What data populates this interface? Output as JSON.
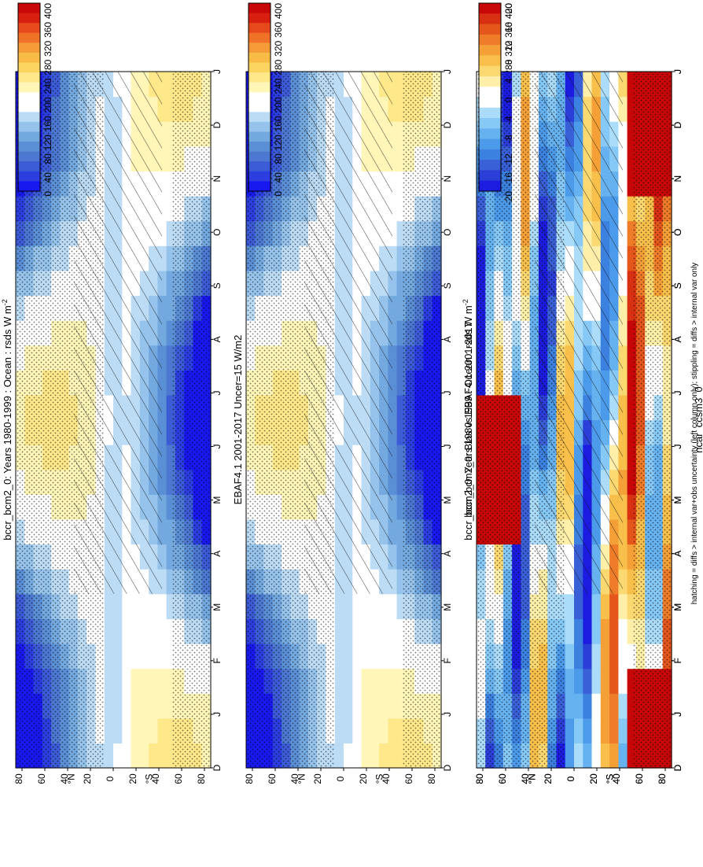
{
  "figure": {
    "footnote": "hatching = diffs > internal var+obs uncertainty (left column only); stippling = diffs > internal var only"
  },
  "colors": {
    "abs_scale": [
      "#1818f0",
      "#2c3ee0",
      "#3c5bd6",
      "#4c78d2",
      "#5b8fd5",
      "#74a9e0",
      "#96c3ec",
      "#bcdcf6",
      "#ffffff",
      "#ffffff",
      "#fff6b8",
      "#ffe88a",
      "#fbd460",
      "#f8bb45",
      "#f49a38",
      "#ef7228",
      "#e64a1c",
      "#d82010",
      "#c80808"
    ],
    "diff_scale": [
      "#1c1ce0",
      "#2c3ed8",
      "#3a60d8",
      "#3c80e0",
      "#4c9aea",
      "#66b2f0",
      "#86c8f6",
      "#abdcfa",
      "#ffffff",
      "#ffffff",
      "#ffefa8",
      "#fbd870",
      "#f8bf4a",
      "#f4a036",
      "#ee7c28",
      "#e5561c",
      "#d83012",
      "#c80808"
    ],
    "hatch": "#111111",
    "stipple": "#000000"
  },
  "chart_data": [
    {
      "type": "heatmap",
      "id": "top-left",
      "title": "bccr_bcm2_0: Years 1980-1999 : Ocean : rsds W m⁻²",
      "title_main": "bccr_bcm2_0: Years 1980-1999 : Ocean : rsds W m",
      "title_sup": "-2",
      "x_labels": [
        "D",
        "J",
        "F",
        "M",
        "A",
        "M",
        "J",
        "J",
        "A",
        "S",
        "O",
        "N",
        "D",
        "J"
      ],
      "y_labels": [
        "80",
        "60",
        "40",
        "20",
        "0",
        "20",
        "40",
        "60",
        "80"
      ],
      "y_tick_marks": [
        "N",
        "S"
      ],
      "colorbar_labels": [
        "400",
        "360",
        "320",
        "280",
        "240",
        "200",
        "160",
        "120",
        "80",
        "40",
        "0"
      ],
      "range": [
        0,
        420
      ],
      "kind": "abs",
      "hatched": true
    },
    {
      "type": "heatmap",
      "id": "top-right",
      "title": "bccr_bcm2_0: Years 1980-1999 : Ocean : rsds W m⁻²",
      "title_main": "bccr_bcm2_0: Years 1980-1999 : Ocean : rsds W m",
      "title_sup": "-2",
      "x_labels": [
        "D",
        "J",
        "F",
        "M",
        "A",
        "M",
        "J",
        "J",
        "A",
        "S",
        "O",
        "N",
        "D",
        "J"
      ],
      "y_labels": [
        "80",
        "60",
        "40",
        "20",
        "0",
        "20",
        "40",
        "60",
        "80"
      ],
      "y_tick_marks": [
        "N",
        "S"
      ],
      "colorbar_labels": [
        "400",
        "360",
        "320",
        "280",
        "240",
        "200",
        "160",
        "120",
        "80",
        "40",
        "0"
      ],
      "range": [
        0,
        420
      ],
      "kind": "abs",
      "hatched": false
    },
    {
      "type": "heatmap",
      "id": "middle-left",
      "title": "EBAF4.1 2001-2017 Uncer=15 W/m2",
      "x_labels": [
        "D",
        "J",
        "F",
        "M",
        "A",
        "M",
        "J",
        "J",
        "A",
        "S",
        "O",
        "N",
        "D",
        "J"
      ],
      "y_labels": [
        "80",
        "60",
        "40",
        "20",
        "0",
        "20",
        "40",
        "60",
        "80"
      ],
      "y_tick_marks": [
        "N",
        "S"
      ],
      "colorbar_labels": [
        "400",
        "360",
        "320",
        "280",
        "240",
        "200",
        "160",
        "120",
        "80",
        "40",
        "0"
      ],
      "range": [
        0,
        420
      ],
      "kind": "abs",
      "hatched": true
    },
    {
      "type": "heatmap",
      "id": "middle-right",
      "title": "ncar_ccsm3_0",
      "x_labels": [
        "D",
        "J",
        "F",
        "M",
        "A",
        "M",
        "J",
        "J",
        "A",
        "S",
        "O",
        "N",
        "D",
        "J"
      ],
      "y_labels": [
        "80",
        "60",
        "40",
        "20",
        "0",
        "20",
        "40",
        "60",
        "80"
      ],
      "y_tick_marks": [
        "N",
        "S"
      ],
      "colorbar_labels": [
        "400",
        "360",
        "320",
        "280",
        "240",
        "200",
        "160",
        "120",
        "80",
        "40",
        "0"
      ],
      "range": [
        0,
        420
      ],
      "kind": "abs",
      "hatched": false
    },
    {
      "type": "heatmap",
      "id": "bottom-left",
      "title": "bccr_bcm2_0: Bias vs EBAF4.1 2001-2017",
      "x_labels": [
        "D",
        "J",
        "F",
        "M",
        "A",
        "M",
        "J",
        "J",
        "A",
        "S",
        "O",
        "N",
        "D",
        "J"
      ],
      "y_labels": [
        "80",
        "60",
        "40",
        "20",
        "0",
        "20",
        "40",
        "60",
        "80"
      ],
      "y_tick_marks": [
        "N",
        "S"
      ],
      "colorbar_labels": [
        "20",
        "16",
        "12",
        "8",
        "4",
        "0",
        "-4",
        "-8",
        "-12",
        "-16",
        "-20"
      ],
      "range": [
        -22,
        22
      ],
      "kind": "diff",
      "hatched": true
    },
    {
      "type": "heatmap",
      "id": "bottom-right",
      "title": "bccr_bcm2_0: Change vs ncar_ccsm3_0",
      "x_labels": [
        "D",
        "J",
        "F",
        "M",
        "A",
        "M",
        "J",
        "J",
        "A",
        "S",
        "O",
        "N",
        "D",
        "J"
      ],
      "y_labels": [
        "80",
        "60",
        "40",
        "20",
        "0",
        "20",
        "40",
        "60",
        "80"
      ],
      "y_tick_marks": [
        "N",
        "S"
      ],
      "colorbar_labels": [
        "20",
        "16",
        "12",
        "8",
        "4",
        "0",
        "-4",
        "-8",
        "-12",
        "-16",
        "-20"
      ],
      "range": [
        -22,
        22
      ],
      "kind": "diff",
      "hatched": false
    }
  ]
}
